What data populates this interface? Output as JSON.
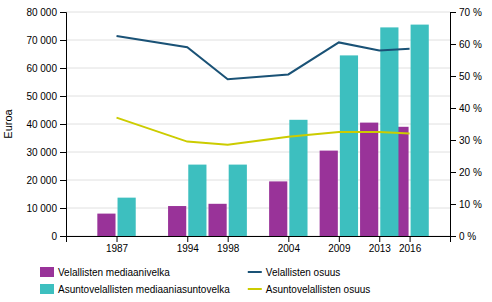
{
  "chart_data": {
    "type": "bar",
    "x": [
      1987,
      1994,
      1998,
      2004,
      2009,
      2013,
      2016
    ],
    "xlim": [
      1982,
      2020
    ],
    "xticks": [
      1987,
      1994,
      1998,
      2004,
      2009,
      2013,
      2016
    ],
    "ylabel": "Euroa",
    "ylim": [
      0,
      80000
    ],
    "yticks": [
      0,
      {
        "value": 10000,
        "label": "10 000"
      },
      {
        "value": 20000,
        "label": "20 000"
      },
      {
        "value": 30000,
        "label": "30 000"
      },
      {
        "value": 40000,
        "label": "40 000"
      },
      {
        "value": 50000,
        "label": "50 000"
      },
      {
        "value": 60000,
        "label": "60 000"
      },
      {
        "value": 70000,
        "label": "70 000"
      },
      {
        "value": 80000,
        "label": "80 000"
      }
    ],
    "y2lim": [
      0,
      70
    ],
    "y2ticks": [
      {
        "value": 0,
        "label": "0 %"
      },
      {
        "value": 10,
        "label": "10 %"
      },
      {
        "value": 20,
        "label": "20 %"
      },
      {
        "value": 30,
        "label": "30 %"
      },
      {
        "value": 40,
        "label": "40 %"
      },
      {
        "value": 50,
        "label": "50 %"
      },
      {
        "value": 60,
        "label": "60 %"
      },
      {
        "value": 70,
        "label": "70 %"
      }
    ],
    "grid": true,
    "legend": "bottom",
    "series": [
      {
        "name": "Velallisten mediaanivelka",
        "type": "bar",
        "color": "#993399",
        "values": [
          8000,
          10700,
          11500,
          19500,
          30500,
          40500,
          39000
        ]
      },
      {
        "name": "Asuntovelallisten mediaaniasuntovelka",
        "type": "bar",
        "color": "#3DBFBF",
        "values": [
          13700,
          25500,
          25500,
          41500,
          64500,
          74500,
          75500
        ]
      },
      {
        "name": "Velallisten osuus",
        "type": "line",
        "axis": "y2",
        "color": "#1A5276",
        "values": [
          62.5,
          59.0,
          49.0,
          50.5,
          60.5,
          58.0,
          58.5
        ]
      },
      {
        "name": "Asuntovelallisten osuus",
        "type": "line",
        "axis": "y2",
        "color": "#CCCC00",
        "values": [
          37.0,
          29.5,
          28.5,
          31.0,
          32.5,
          32.5,
          32.0
        ]
      }
    ]
  }
}
